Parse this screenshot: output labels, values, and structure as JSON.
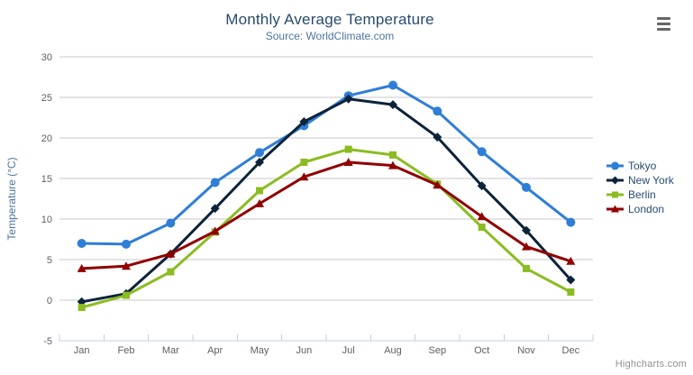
{
  "chart": {
    "title": "Monthly Average Temperature",
    "subtitle": "Source: WorldClimate.com",
    "credits": "Highcharts.com"
  },
  "chart_data": {
    "type": "line",
    "title": "Monthly Average Temperature",
    "subtitle": "Source: WorldClimate.com",
    "xlabel": "",
    "ylabel": "Temperature (°C)",
    "categories": [
      "Jan",
      "Feb",
      "Mar",
      "Apr",
      "May",
      "Jun",
      "Jul",
      "Aug",
      "Sep",
      "Oct",
      "Nov",
      "Dec"
    ],
    "ylim": [
      -5,
      30
    ],
    "yticks": [
      -5,
      0,
      5,
      10,
      15,
      20,
      25,
      30
    ],
    "grid": "horizontal",
    "legend_position": "right",
    "series": [
      {
        "name": "Tokyo",
        "color": "#2f7ed8",
        "marker": "circle",
        "values": [
          7.0,
          6.9,
          9.5,
          14.5,
          18.2,
          21.5,
          25.2,
          26.5,
          23.3,
          18.3,
          13.9,
          9.6
        ]
      },
      {
        "name": "New York",
        "color": "#0d233a",
        "marker": "diamond",
        "values": [
          -0.2,
          0.8,
          5.7,
          11.3,
          17.0,
          22.0,
          24.8,
          24.1,
          20.1,
          14.1,
          8.6,
          2.5
        ]
      },
      {
        "name": "Berlin",
        "color": "#8bbc21",
        "marker": "square",
        "values": [
          -0.9,
          0.6,
          3.5,
          8.4,
          13.5,
          17.0,
          18.6,
          17.9,
          14.3,
          9.0,
          3.9,
          1.0
        ]
      },
      {
        "name": "London",
        "color": "#910000",
        "marker": "triangle",
        "values": [
          3.9,
          4.2,
          5.7,
          8.5,
          11.9,
          15.2,
          17.0,
          16.6,
          14.2,
          10.3,
          6.6,
          4.8
        ]
      }
    ]
  }
}
